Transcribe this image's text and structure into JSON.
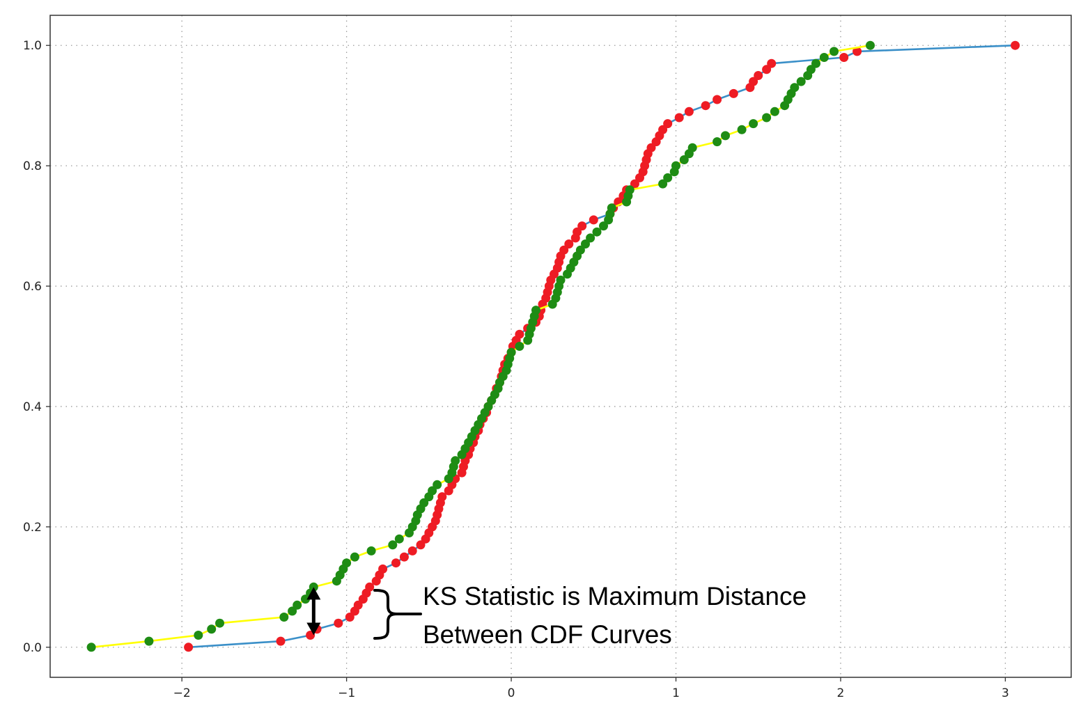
{
  "chart_data": {
    "type": "line",
    "title": "",
    "xlabel": "",
    "ylabel": "",
    "xlim": [
      -2.8,
      3.4
    ],
    "ylim": [
      -0.05,
      1.05
    ],
    "grid": true,
    "grid_style": "dotted",
    "x_ticks": [
      -2,
      -1,
      0,
      1,
      2,
      3
    ],
    "x_tick_labels": [
      "−2",
      "−1",
      "0",
      "1",
      "2",
      "3"
    ],
    "y_ticks": [
      0.0,
      0.2,
      0.4,
      0.6,
      0.8,
      1.0
    ],
    "y_tick_labels": [
      "0.0",
      "0.2",
      "0.4",
      "0.6",
      "0.8",
      "1.0"
    ],
    "series": [
      {
        "line_color": "#3a8fc8",
        "marker_color": "#ee1c24",
        "points": [
          [
            -1.96,
            0.0
          ],
          [
            -1.4,
            0.01
          ],
          [
            -1.22,
            0.02
          ],
          [
            -1.18,
            0.03
          ],
          [
            -1.05,
            0.04
          ],
          [
            -0.98,
            0.05
          ],
          [
            -0.95,
            0.06
          ],
          [
            -0.93,
            0.07
          ],
          [
            -0.9,
            0.08
          ],
          [
            -0.88,
            0.09
          ],
          [
            -0.86,
            0.1
          ],
          [
            -0.82,
            0.11
          ],
          [
            -0.8,
            0.12
          ],
          [
            -0.78,
            0.13
          ],
          [
            -0.7,
            0.14
          ],
          [
            -0.65,
            0.15
          ],
          [
            -0.6,
            0.16
          ],
          [
            -0.55,
            0.17
          ],
          [
            -0.52,
            0.18
          ],
          [
            -0.5,
            0.19
          ],
          [
            -0.48,
            0.2
          ],
          [
            -0.46,
            0.21
          ],
          [
            -0.45,
            0.22
          ],
          [
            -0.44,
            0.23
          ],
          [
            -0.43,
            0.24
          ],
          [
            -0.42,
            0.25
          ],
          [
            -0.38,
            0.26
          ],
          [
            -0.36,
            0.27
          ],
          [
            -0.34,
            0.28
          ],
          [
            -0.3,
            0.29
          ],
          [
            -0.29,
            0.3
          ],
          [
            -0.28,
            0.31
          ],
          [
            -0.26,
            0.32
          ],
          [
            -0.25,
            0.33
          ],
          [
            -0.23,
            0.34
          ],
          [
            -0.22,
            0.35
          ],
          [
            -0.2,
            0.36
          ],
          [
            -0.19,
            0.37
          ],
          [
            -0.17,
            0.38
          ],
          [
            -0.15,
            0.39
          ],
          [
            -0.14,
            0.4
          ],
          [
            -0.12,
            0.41
          ],
          [
            -0.1,
            0.42
          ],
          [
            -0.09,
            0.43
          ],
          [
            -0.07,
            0.44
          ],
          [
            -0.06,
            0.45
          ],
          [
            -0.05,
            0.46
          ],
          [
            -0.04,
            0.47
          ],
          [
            -0.02,
            0.48
          ],
          [
            0.0,
            0.49
          ],
          [
            0.01,
            0.5
          ],
          [
            0.03,
            0.51
          ],
          [
            0.05,
            0.52
          ],
          [
            0.1,
            0.53
          ],
          [
            0.15,
            0.54
          ],
          [
            0.17,
            0.55
          ],
          [
            0.18,
            0.56
          ],
          [
            0.19,
            0.57
          ],
          [
            0.21,
            0.58
          ],
          [
            0.22,
            0.59
          ],
          [
            0.23,
            0.6
          ],
          [
            0.24,
            0.61
          ],
          [
            0.26,
            0.62
          ],
          [
            0.28,
            0.63
          ],
          [
            0.29,
            0.64
          ],
          [
            0.3,
            0.65
          ],
          [
            0.32,
            0.66
          ],
          [
            0.35,
            0.67
          ],
          [
            0.39,
            0.68
          ],
          [
            0.4,
            0.69
          ],
          [
            0.43,
            0.7
          ],
          [
            0.5,
            0.71
          ],
          [
            0.6,
            0.72
          ],
          [
            0.62,
            0.73
          ],
          [
            0.65,
            0.74
          ],
          [
            0.68,
            0.75
          ],
          [
            0.7,
            0.76
          ],
          [
            0.75,
            0.77
          ],
          [
            0.78,
            0.78
          ],
          [
            0.8,
            0.79
          ],
          [
            0.81,
            0.8
          ],
          [
            0.82,
            0.81
          ],
          [
            0.83,
            0.82
          ],
          [
            0.85,
            0.83
          ],
          [
            0.88,
            0.84
          ],
          [
            0.9,
            0.85
          ],
          [
            0.92,
            0.86
          ],
          [
            0.95,
            0.87
          ],
          [
            1.02,
            0.88
          ],
          [
            1.08,
            0.89
          ],
          [
            1.18,
            0.9
          ],
          [
            1.25,
            0.91
          ],
          [
            1.35,
            0.92
          ],
          [
            1.45,
            0.93
          ],
          [
            1.47,
            0.94
          ],
          [
            1.5,
            0.95
          ],
          [
            1.55,
            0.96
          ],
          [
            1.58,
            0.97
          ],
          [
            2.02,
            0.98
          ],
          [
            2.1,
            0.99
          ],
          [
            3.06,
            1.0
          ]
        ]
      },
      {
        "line_color": "#ffff00",
        "marker_color": "#1e8c14",
        "points": [
          [
            -2.55,
            0.0
          ],
          [
            -2.2,
            0.01
          ],
          [
            -1.9,
            0.02
          ],
          [
            -1.82,
            0.03
          ],
          [
            -1.77,
            0.04
          ],
          [
            -1.38,
            0.05
          ],
          [
            -1.33,
            0.06
          ],
          [
            -1.3,
            0.07
          ],
          [
            -1.25,
            0.08
          ],
          [
            -1.22,
            0.09
          ],
          [
            -1.2,
            0.1
          ],
          [
            -1.06,
            0.11
          ],
          [
            -1.04,
            0.12
          ],
          [
            -1.02,
            0.13
          ],
          [
            -1.0,
            0.14
          ],
          [
            -0.95,
            0.15
          ],
          [
            -0.85,
            0.16
          ],
          [
            -0.72,
            0.17
          ],
          [
            -0.68,
            0.18
          ],
          [
            -0.62,
            0.19
          ],
          [
            -0.6,
            0.2
          ],
          [
            -0.58,
            0.21
          ],
          [
            -0.57,
            0.22
          ],
          [
            -0.55,
            0.23
          ],
          [
            -0.53,
            0.24
          ],
          [
            -0.5,
            0.25
          ],
          [
            -0.48,
            0.26
          ],
          [
            -0.45,
            0.27
          ],
          [
            -0.38,
            0.28
          ],
          [
            -0.36,
            0.29
          ],
          [
            -0.35,
            0.3
          ],
          [
            -0.34,
            0.31
          ],
          [
            -0.3,
            0.32
          ],
          [
            -0.28,
            0.33
          ],
          [
            -0.26,
            0.34
          ],
          [
            -0.24,
            0.35
          ],
          [
            -0.22,
            0.36
          ],
          [
            -0.2,
            0.37
          ],
          [
            -0.18,
            0.38
          ],
          [
            -0.16,
            0.39
          ],
          [
            -0.14,
            0.4
          ],
          [
            -0.12,
            0.41
          ],
          [
            -0.1,
            0.42
          ],
          [
            -0.08,
            0.43
          ],
          [
            -0.07,
            0.44
          ],
          [
            -0.05,
            0.45
          ],
          [
            -0.03,
            0.46
          ],
          [
            -0.02,
            0.47
          ],
          [
            -0.01,
            0.48
          ],
          [
            0.0,
            0.49
          ],
          [
            0.05,
            0.5
          ],
          [
            0.1,
            0.51
          ],
          [
            0.11,
            0.52
          ],
          [
            0.12,
            0.53
          ],
          [
            0.13,
            0.54
          ],
          [
            0.14,
            0.55
          ],
          [
            0.15,
            0.56
          ],
          [
            0.25,
            0.57
          ],
          [
            0.27,
            0.58
          ],
          [
            0.28,
            0.59
          ],
          [
            0.29,
            0.6
          ],
          [
            0.3,
            0.61
          ],
          [
            0.34,
            0.62
          ],
          [
            0.36,
            0.63
          ],
          [
            0.38,
            0.64
          ],
          [
            0.4,
            0.65
          ],
          [
            0.42,
            0.66
          ],
          [
            0.45,
            0.67
          ],
          [
            0.48,
            0.68
          ],
          [
            0.52,
            0.69
          ],
          [
            0.56,
            0.7
          ],
          [
            0.59,
            0.71
          ],
          [
            0.6,
            0.72
          ],
          [
            0.61,
            0.73
          ],
          [
            0.7,
            0.74
          ],
          [
            0.71,
            0.75
          ],
          [
            0.72,
            0.76
          ],
          [
            0.92,
            0.77
          ],
          [
            0.95,
            0.78
          ],
          [
            0.99,
            0.79
          ],
          [
            1.0,
            0.8
          ],
          [
            1.05,
            0.81
          ],
          [
            1.08,
            0.82
          ],
          [
            1.1,
            0.83
          ],
          [
            1.25,
            0.84
          ],
          [
            1.3,
            0.85
          ],
          [
            1.4,
            0.86
          ],
          [
            1.47,
            0.87
          ],
          [
            1.55,
            0.88
          ],
          [
            1.6,
            0.89
          ],
          [
            1.66,
            0.9
          ],
          [
            1.68,
            0.91
          ],
          [
            1.7,
            0.92
          ],
          [
            1.72,
            0.93
          ],
          [
            1.76,
            0.94
          ],
          [
            1.8,
            0.95
          ],
          [
            1.82,
            0.96
          ],
          [
            1.85,
            0.97
          ],
          [
            1.9,
            0.98
          ],
          [
            1.96,
            0.99
          ],
          [
            2.18,
            1.0
          ]
        ]
      }
    ],
    "ks_marker": {
      "x": -1.2,
      "y_low": 0.02,
      "y_high": 0.1
    },
    "annotation": {
      "line1": "KS Statistic is Maximum Distance",
      "line2": "Between CDF Curves"
    }
  }
}
